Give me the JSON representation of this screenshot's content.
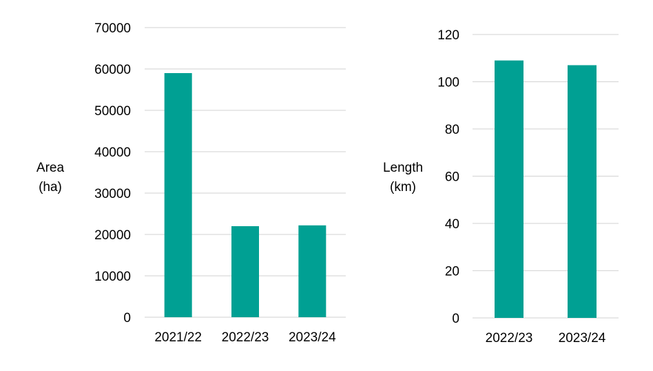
{
  "chart_data": [
    {
      "type": "bar",
      "categories": [
        "2021/22",
        "2022/23",
        "2023/24"
      ],
      "values": [
        59000,
        22000,
        22200
      ],
      "ylabel": [
        "Area",
        "(ha)"
      ],
      "ylim": [
        0,
        70000
      ],
      "yticks": [
        0,
        10000,
        20000,
        30000,
        40000,
        50000,
        60000,
        70000
      ],
      "grid": true,
      "color": "#00A093"
    },
    {
      "type": "bar",
      "categories": [
        "2022/23",
        "2023/24"
      ],
      "values": [
        109,
        107
      ],
      "ylabel": [
        "Length",
        "(km)"
      ],
      "ylim": [
        0,
        120
      ],
      "yticks": [
        0,
        20,
        40,
        60,
        80,
        100,
        120
      ],
      "grid": true,
      "color": "#00A093"
    }
  ]
}
